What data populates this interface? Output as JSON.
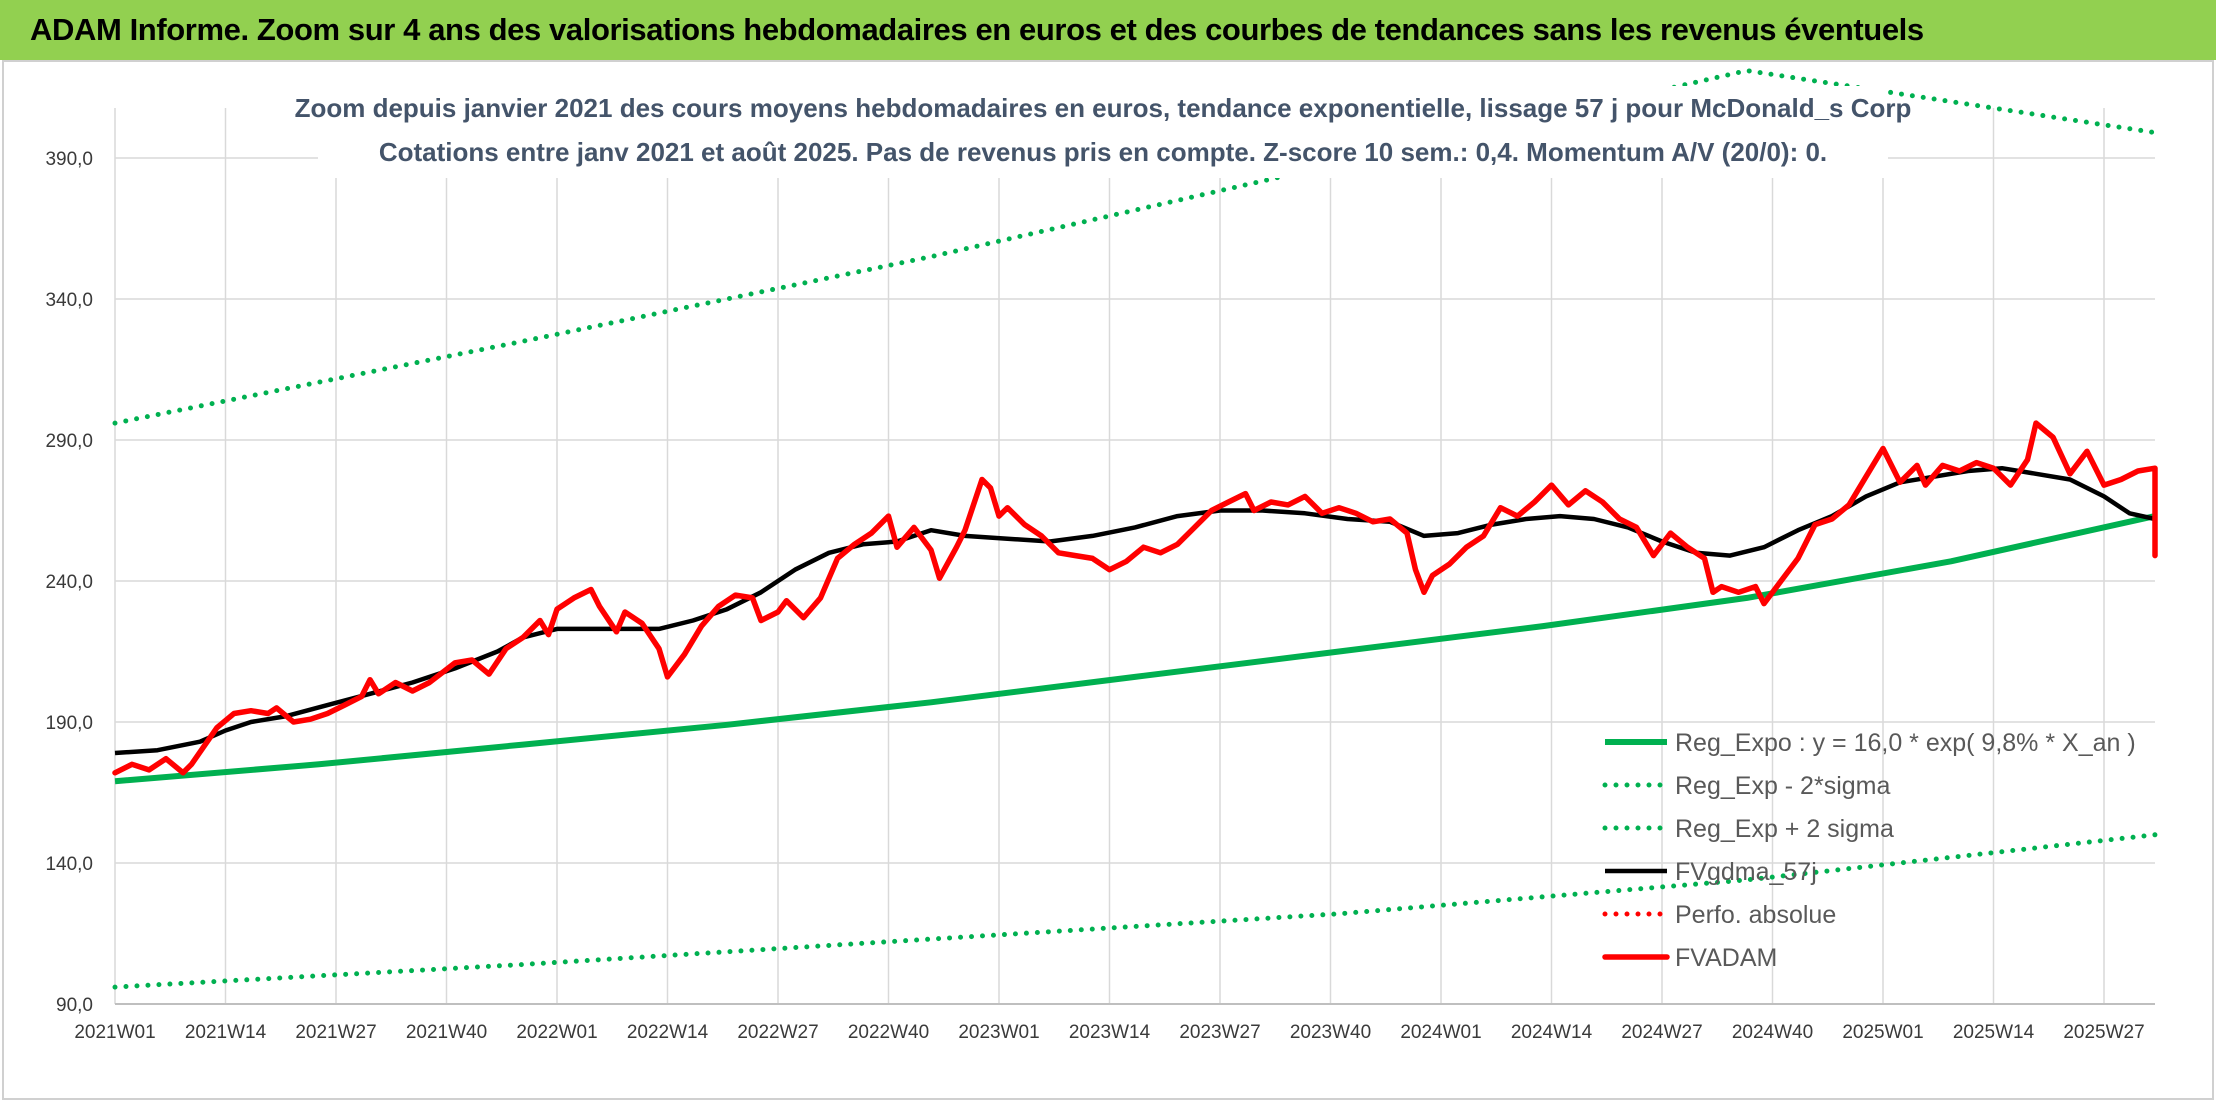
{
  "header": {
    "title": "ADAM Informe. Zoom sur 4 ans des valorisations hebdomadaires en euros et des courbes de tendances sans les revenus éventuels"
  },
  "colors": {
    "banner": "#92D050",
    "trend": "#00B050",
    "bands": "#00B050",
    "smooth": "#000000",
    "price": "#FF0000",
    "perf": "#FF0000",
    "grid": "#D9D9D9",
    "title_text": "#44546A"
  },
  "chart_data": {
    "type": "line",
    "title": "Zoom depuis janvier 2021 des cours moyens hebdomadaires en euros, tendance exponentielle, lissage 57 j pour McDonald_s Corp",
    "subtitle": "Cotations entre janv 2021 et août 2025. Pas de revenus pris en compte. Z-score 10 sem.: 0,4. Momentum A/V (20/0): 0.",
    "xlabel": "",
    "ylabel": "",
    "ylim": [
      90,
      390
    ],
    "y_ticks": [
      "90,0",
      "140,0",
      "190,0",
      "240,0",
      "290,0",
      "340,0",
      "390,0"
    ],
    "x_ticks": [
      "2021W01",
      "2021W14",
      "2021W27",
      "2021W40",
      "2022W01",
      "2022W14",
      "2022W27",
      "2022W40",
      "2023W01",
      "2023W14",
      "2023W27",
      "2023W40",
      "2024W01",
      "2024W14",
      "2024W27",
      "2024W40",
      "2025W01",
      "2025W14",
      "2025W27"
    ],
    "x_range_weeks": [
      0,
      240
    ],
    "grid": true,
    "legend_position": "bottom-right",
    "series": [
      {
        "name": "Reg_Expo : y = 16,0 * exp( 9,8% *  X_an )",
        "style": "solid",
        "color": "#00B050",
        "points": [
          [
            0,
            169
          ],
          [
            24,
            175
          ],
          [
            48,
            182
          ],
          [
            72,
            189
          ],
          [
            96,
            197
          ],
          [
            120,
            206
          ],
          [
            144,
            215
          ],
          [
            168,
            224
          ],
          [
            192,
            234
          ],
          [
            216,
            247
          ],
          [
            240,
            263
          ]
        ]
      },
      {
        "name": "Reg_Exp - 2*sigma",
        "style": "dotted",
        "color": "#00B050",
        "points": [
          [
            0,
            96
          ],
          [
            48,
            104
          ],
          [
            96,
            113
          ],
          [
            144,
            122
          ],
          [
            192,
            134
          ],
          [
            240,
            150
          ]
        ]
      },
      {
        "name": "Reg_Exp + 2 sigma",
        "style": "dotted",
        "color": "#00B050",
        "points": [
          [
            0,
            296
          ],
          [
            48,
            325
          ],
          [
            96,
            355
          ],
          [
            144,
            388
          ],
          [
            192,
            421
          ],
          [
            240,
            399
          ]
        ]
      },
      {
        "name": "FVgdma_57j",
        "style": "solid",
        "color": "#000000",
        "points": [
          [
            0,
            179
          ],
          [
            5,
            180
          ],
          [
            10,
            183
          ],
          [
            13,
            187
          ],
          [
            16,
            190
          ],
          [
            20,
            192
          ],
          [
            25,
            196
          ],
          [
            30,
            200
          ],
          [
            35,
            204
          ],
          [
            40,
            209
          ],
          [
            45,
            215
          ],
          [
            48,
            220
          ],
          [
            52,
            223
          ],
          [
            56,
            223
          ],
          [
            60,
            223
          ],
          [
            64,
            223
          ],
          [
            68,
            226
          ],
          [
            72,
            230
          ],
          [
            76,
            236
          ],
          [
            80,
            244
          ],
          [
            84,
            250
          ],
          [
            88,
            253
          ],
          [
            92,
            254
          ],
          [
            96,
            258
          ],
          [
            100,
            256
          ],
          [
            105,
            255
          ],
          [
            110,
            254
          ],
          [
            115,
            256
          ],
          [
            120,
            259
          ],
          [
            125,
            263
          ],
          [
            130,
            265
          ],
          [
            135,
            265
          ],
          [
            140,
            264
          ],
          [
            145,
            262
          ],
          [
            150,
            261
          ],
          [
            154,
            256
          ],
          [
            158,
            257
          ],
          [
            162,
            260
          ],
          [
            166,
            262
          ],
          [
            170,
            263
          ],
          [
            174,
            262
          ],
          [
            178,
            259
          ],
          [
            182,
            254
          ],
          [
            186,
            250
          ],
          [
            190,
            249
          ],
          [
            194,
            252
          ],
          [
            198,
            258
          ],
          [
            202,
            263
          ],
          [
            206,
            270
          ],
          [
            210,
            275
          ],
          [
            214,
            277
          ],
          [
            218,
            279
          ],
          [
            222,
            280
          ],
          [
            226,
            278
          ],
          [
            230,
            276
          ],
          [
            234,
            270
          ],
          [
            237,
            264
          ],
          [
            240,
            262
          ]
        ]
      },
      {
        "name": "Perfo. absolue",
        "style": "dotted",
        "color": "#FF0000",
        "points": []
      },
      {
        "name": "FVADAM",
        "style": "solid",
        "color": "#FF0000",
        "points": [
          [
            0,
            172
          ],
          [
            2,
            175
          ],
          [
            4,
            173
          ],
          [
            6,
            177
          ],
          [
            8,
            172
          ],
          [
            9,
            175
          ],
          [
            12,
            188
          ],
          [
            14,
            193
          ],
          [
            16,
            194
          ],
          [
            18,
            193
          ],
          [
            19,
            195
          ],
          [
            21,
            190
          ],
          [
            23,
            191
          ],
          [
            25,
            193
          ],
          [
            27,
            196
          ],
          [
            29,
            199
          ],
          [
            30,
            205
          ],
          [
            31,
            200
          ],
          [
            33,
            204
          ],
          [
            35,
            201
          ],
          [
            37,
            204
          ],
          [
            40,
            211
          ],
          [
            42,
            212
          ],
          [
            44,
            207
          ],
          [
            46,
            216
          ],
          [
            48,
            220
          ],
          [
            50,
            226
          ],
          [
            51,
            221
          ],
          [
            52,
            230
          ],
          [
            54,
            234
          ],
          [
            56,
            237
          ],
          [
            57,
            231
          ],
          [
            59,
            222
          ],
          [
            60,
            229
          ],
          [
            62,
            225
          ],
          [
            64,
            216
          ],
          [
            65,
            206
          ],
          [
            67,
            214
          ],
          [
            69,
            224
          ],
          [
            71,
            231
          ],
          [
            73,
            235
          ],
          [
            75,
            234
          ],
          [
            76,
            226
          ],
          [
            78,
            229
          ],
          [
            79,
            233
          ],
          [
            81,
            227
          ],
          [
            83,
            234
          ],
          [
            85,
            248
          ],
          [
            87,
            253
          ],
          [
            89,
            257
          ],
          [
            91,
            263
          ],
          [
            92,
            252
          ],
          [
            94,
            259
          ],
          [
            96,
            251
          ],
          [
            97,
            241
          ],
          [
            99,
            252
          ],
          [
            100,
            258
          ],
          [
            102,
            276
          ],
          [
            103,
            273
          ],
          [
            104,
            263
          ],
          [
            105,
            266
          ],
          [
            107,
            260
          ],
          [
            109,
            256
          ],
          [
            111,
            250
          ],
          [
            113,
            249
          ],
          [
            115,
            248
          ],
          [
            117,
            244
          ],
          [
            119,
            247
          ],
          [
            121,
            252
          ],
          [
            123,
            250
          ],
          [
            125,
            253
          ],
          [
            127,
            259
          ],
          [
            129,
            265
          ],
          [
            131,
            268
          ],
          [
            133,
            271
          ],
          [
            134,
            265
          ],
          [
            136,
            268
          ],
          [
            138,
            267
          ],
          [
            140,
            270
          ],
          [
            142,
            264
          ],
          [
            144,
            266
          ],
          [
            146,
            264
          ],
          [
            148,
            261
          ],
          [
            150,
            262
          ],
          [
            152,
            257
          ],
          [
            153,
            244
          ],
          [
            154,
            236
          ],
          [
            155,
            242
          ],
          [
            157,
            246
          ],
          [
            159,
            252
          ],
          [
            161,
            256
          ],
          [
            163,
            266
          ],
          [
            165,
            263
          ],
          [
            167,
            268
          ],
          [
            169,
            274
          ],
          [
            171,
            267
          ],
          [
            173,
            272
          ],
          [
            175,
            268
          ],
          [
            177,
            262
          ],
          [
            179,
            259
          ],
          [
            181,
            249
          ],
          [
            183,
            257
          ],
          [
            185,
            252
          ],
          [
            187,
            248
          ],
          [
            188,
            236
          ],
          [
            189,
            238
          ],
          [
            191,
            236
          ],
          [
            193,
            238
          ],
          [
            194,
            232
          ],
          [
            196,
            240
          ],
          [
            198,
            248
          ],
          [
            200,
            260
          ],
          [
            202,
            262
          ],
          [
            204,
            267
          ],
          [
            206,
            277
          ],
          [
            208,
            287
          ],
          [
            210,
            275
          ],
          [
            212,
            281
          ],
          [
            213,
            274
          ],
          [
            215,
            281
          ],
          [
            217,
            279
          ],
          [
            219,
            282
          ],
          [
            221,
            280
          ],
          [
            223,
            274
          ],
          [
            225,
            283
          ],
          [
            226,
            296
          ],
          [
            228,
            291
          ],
          [
            230,
            278
          ],
          [
            232,
            286
          ],
          [
            234,
            274
          ],
          [
            236,
            276
          ],
          [
            238,
            279
          ],
          [
            240,
            280
          ],
          [
            241,
            276
          ],
          [
            243,
            266
          ],
          [
            244,
            256
          ],
          [
            245,
            249
          ],
          [
            247,
            253
          ],
          [
            249,
            258
          ],
          [
            250,
            254
          ],
          [
            252,
            262
          ]
        ]
      }
    ]
  }
}
